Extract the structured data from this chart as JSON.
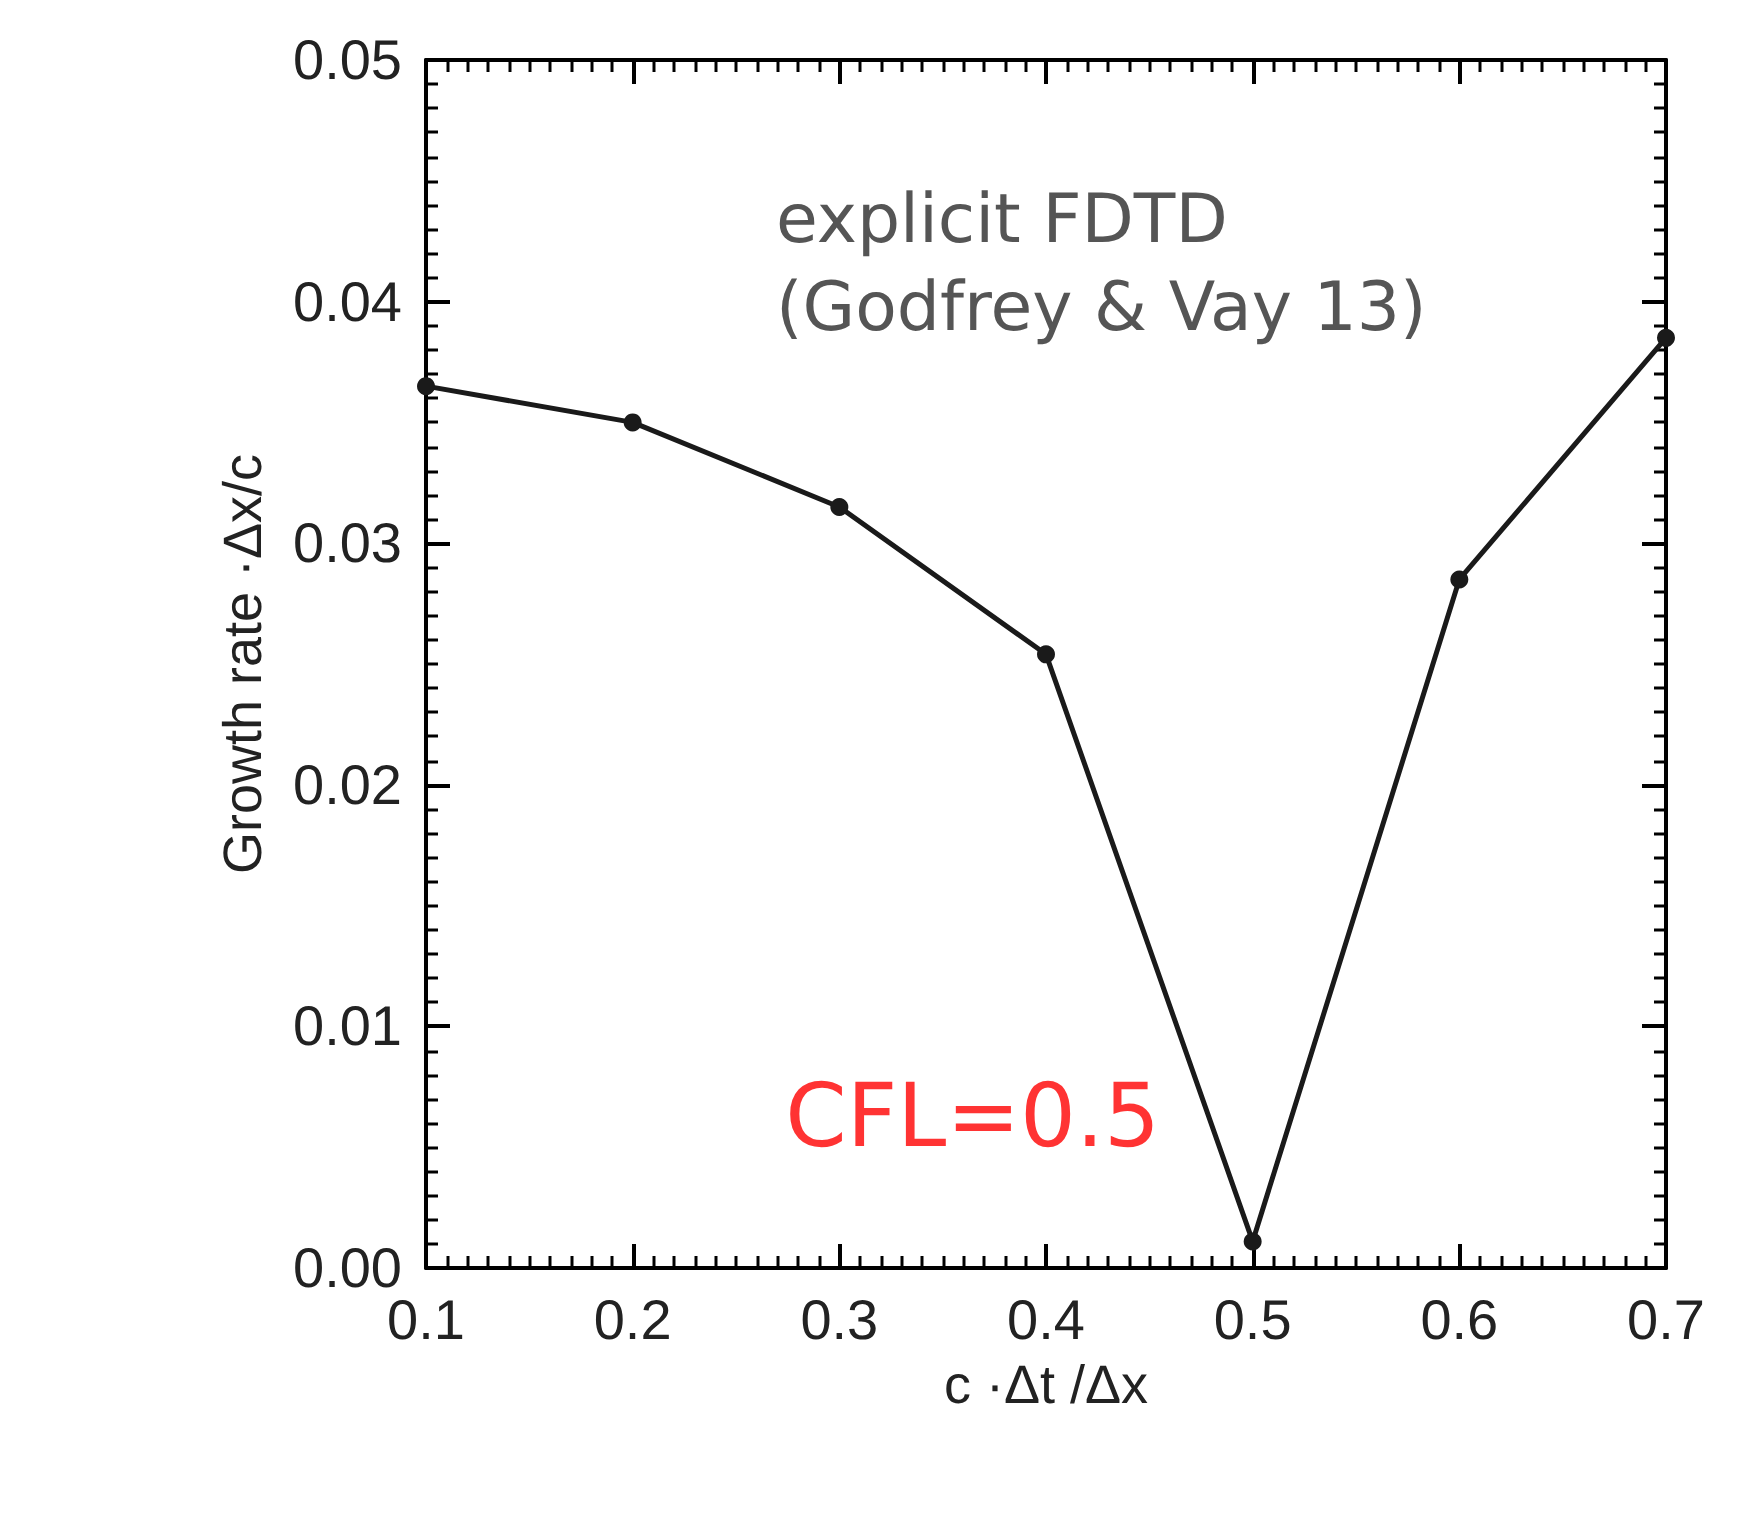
{
  "chart_data": {
    "type": "line",
    "xlabel": "c ·Δt /Δx",
    "ylabel": "Growth rate ·Δx/c",
    "x": [
      0.1,
      0.2,
      0.3,
      0.4,
      0.5,
      0.6,
      0.7
    ],
    "series": [
      {
        "color": "#1a1a1a",
        "values": [
          0.0365,
          0.035,
          0.0315,
          0.0254,
          0.0011,
          0.0285,
          0.0385
        ]
      }
    ],
    "xlim": [
      0.1,
      0.7
    ],
    "xticks": [
      0.1,
      0.2,
      0.3,
      0.4,
      0.5,
      0.6,
      0.7
    ],
    "ylim": [
      0,
      0.05
    ],
    "yticks": [
      {
        "value": 0,
        "label": "0.00"
      },
      {
        "value": 0.01,
        "label": "0.01"
      },
      {
        "value": 0.02,
        "label": "0.02"
      },
      {
        "value": 0.03,
        "label": "0.03"
      },
      {
        "value": 0.04,
        "label": "0.04"
      },
      {
        "value": 0.05,
        "label": "0.05"
      }
    ],
    "annotations": [
      "explicit FDTD\n(Godfrey & Vay 13)",
      {
        "text": "CFL=0.5",
        "x": 0.5,
        "y": 0.0011
      }
    ],
    "marker": "circle",
    "line_style": "solid",
    "grid": false
  }
}
